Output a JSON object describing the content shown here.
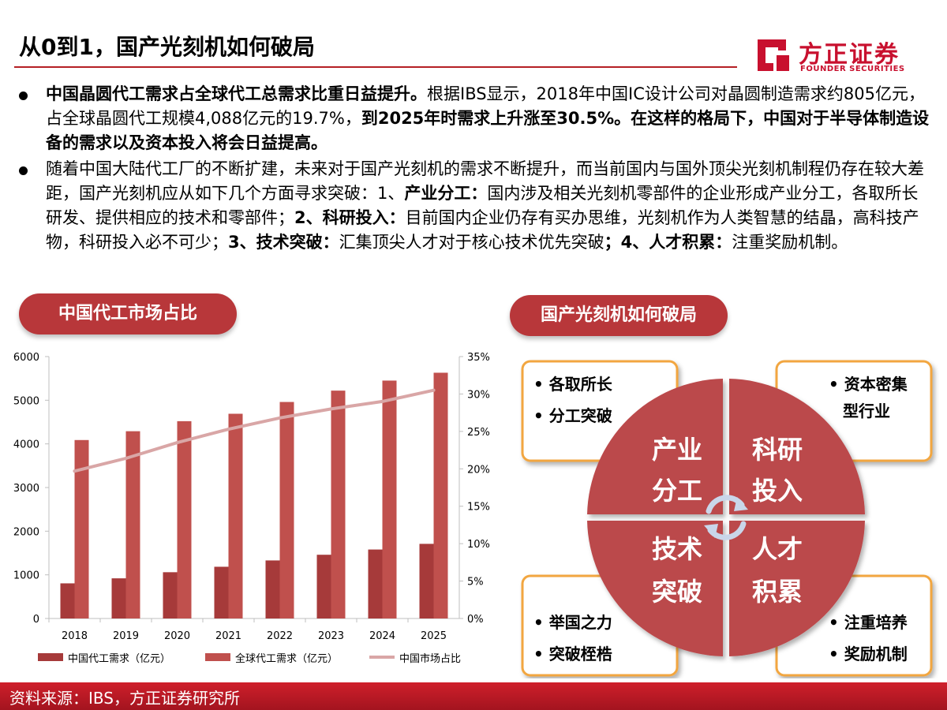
{
  "header": {
    "title": "从0到1，国产光刻机如何破局",
    "logo_cn": "方正证券",
    "logo_en": "FOUNDER SECURITIES"
  },
  "bullets": [
    {
      "segments": [
        {
          "text": "中国晶圆代工需求占全球代工总需求比重日益提升。",
          "bold": true
        },
        {
          "text": "根据IBS显示，2018年中国IC设计公司对晶圆制造需求约805亿元，占全球晶圆代工规模4,088亿元的19.7%，",
          "bold": false
        },
        {
          "text": "到2025年时需求上升涨至30.5%。在这样的格局下，中国对于半导体制造设备的需求以及资本投入将会日益提高。",
          "bold": true
        }
      ]
    },
    {
      "segments": [
        {
          "text": "随着中国大陆代工厂的不断扩建，未来对于国产光刻机的需求不断提升，而当前国内与国外顶尖光刻机制程仍存在较大差距，国产光刻机应从如下几个方面寻求突破：1、",
          "bold": false
        },
        {
          "text": "产业分工：",
          "bold": true
        },
        {
          "text": "国内涉及相关光刻机零部件的企业形成产业分工，各取所长研发、提供相应的技术和零部件；",
          "bold": false
        },
        {
          "text": "2、科研投入：",
          "bold": true
        },
        {
          "text": "目前国内企业仍存有买办思维，光刻机作为人类智慧的结晶，高科技产物，科研投入必不可少；",
          "bold": false
        },
        {
          "text": "3、技术突破：",
          "bold": true
        },
        {
          "text": "汇集顶尖人才对于核心技术优先突破",
          "bold": false
        },
        {
          "text": "；4、人才积累：",
          "bold": true
        },
        {
          "text": "注重奖励机制。",
          "bold": false
        }
      ]
    }
  ],
  "left_section_label": "中国代工市场占比",
  "right_section_label": "国产光刻机如何破局",
  "chart_data": {
    "type": "bar",
    "categories": [
      "2018",
      "2019",
      "2020",
      "2021",
      "2022",
      "2023",
      "2024",
      "2025"
    ],
    "series": [
      {
        "name": "中国代工需求（亿元）",
        "type": "bar",
        "axis": "left",
        "color": "#a63a3a",
        "values": [
          805,
          920,
          1060,
          1185,
          1330,
          1460,
          1580,
          1710
        ]
      },
      {
        "name": "全球代工需求（亿元）",
        "type": "bar",
        "axis": "left",
        "color": "#c0504d",
        "values": [
          4088,
          4290,
          4520,
          4690,
          4960,
          5220,
          5450,
          5630
        ]
      },
      {
        "name": "中国市场占比",
        "type": "line",
        "axis": "right",
        "color": "#d9a6a6",
        "values": [
          19.7,
          21.4,
          23.5,
          25.3,
          26.8,
          28.0,
          29.0,
          30.5
        ]
      }
    ],
    "y_left": {
      "min": 0,
      "max": 6000,
      "ticks": [
        "0",
        "1000",
        "2000",
        "3000",
        "4000",
        "5000",
        "6000"
      ]
    },
    "y_right": {
      "min": 0,
      "max": 35,
      "ticks": [
        "0%",
        "5%",
        "10%",
        "15%",
        "20%",
        "25%",
        "30%",
        "35%"
      ]
    },
    "grid": false,
    "legend_position": "bottom"
  },
  "diagram": {
    "quadrants": [
      {
        "line1": "产业",
        "line2": "分工"
      },
      {
        "line1": "科研",
        "line2": "投入"
      },
      {
        "line1": "技术",
        "line2": "突破"
      },
      {
        "line1": "人才",
        "line2": "积累"
      }
    ],
    "boxes": [
      {
        "items": [
          "各取所长",
          "分工突破"
        ]
      },
      {
        "items": [
          "资本密集",
          "型行业"
        ]
      },
      {
        "items": [
          "举国之力",
          "突破桎梏"
        ]
      },
      {
        "items": [
          "注重培养",
          "奖励机制"
        ]
      }
    ],
    "colors": {
      "quadrant": "#bb4a4c",
      "box_border": "#f2a640"
    }
  },
  "footer": {
    "source": "资料来源：IBS，方正证券研究所"
  }
}
